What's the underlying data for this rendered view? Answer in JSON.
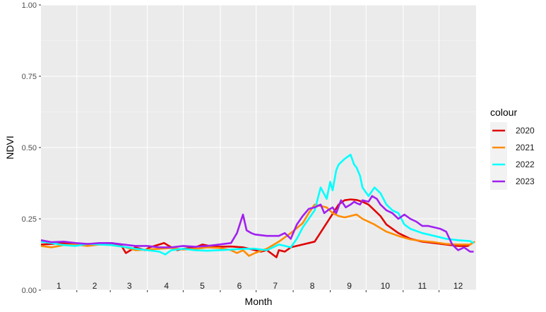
{
  "chart_data": {
    "type": "line",
    "xlabel": "Month",
    "ylabel": "NDVI",
    "xlim": [
      1,
      365
    ],
    "ylim": [
      0,
      1
    ],
    "y_ticks": [
      "0.00",
      "0.25",
      "0.50",
      "0.75",
      "1.00"
    ],
    "y_tick_values": [
      0,
      0.25,
      0.5,
      0.75,
      1.0
    ],
    "month_labels": [
      "1",
      "2",
      "3",
      "4",
      "5",
      "6",
      "7",
      "8",
      "9",
      "10",
      "11",
      "12"
    ],
    "month_centers": [
      16,
      46,
      75,
      106,
      136,
      167,
      197,
      228,
      259,
      289,
      320,
      350
    ],
    "month_boundaries": [
      31,
      59,
      90,
      120,
      151,
      181,
      212,
      243,
      273,
      304,
      334
    ],
    "grid": true,
    "background": "#EBEBEB",
    "legend": {
      "title": "colour",
      "position": "right"
    },
    "series": [
      {
        "name": "2020",
        "color": "#E00000",
        "x": [
          1,
          10,
          20,
          30,
          40,
          50,
          60,
          68,
          72,
          80,
          88,
          92,
          96,
          100,
          104,
          108,
          115,
          120,
          130,
          136,
          142,
          150,
          160,
          170,
          180,
          185,
          190,
          198,
          200,
          205,
          210,
          220,
          230,
          240,
          250,
          255,
          260,
          265,
          270,
          275,
          280,
          285,
          290,
          300,
          310,
          320,
          330,
          340,
          350,
          358,
          362
        ],
        "y": [
          0.16,
          0.162,
          0.165,
          0.163,
          0.16,
          0.162,
          0.165,
          0.158,
          0.13,
          0.15,
          0.14,
          0.15,
          0.155,
          0.16,
          0.165,
          0.155,
          0.14,
          0.145,
          0.15,
          0.16,
          0.155,
          0.152,
          0.153,
          0.15,
          0.14,
          0.135,
          0.14,
          0.115,
          0.14,
          0.135,
          0.15,
          0.16,
          0.17,
          0.235,
          0.3,
          0.315,
          0.318,
          0.316,
          0.31,
          0.3,
          0.28,
          0.26,
          0.23,
          0.2,
          0.18,
          0.17,
          0.165,
          0.16,
          0.155,
          0.155,
          0.165
        ]
      },
      {
        "name": "2021",
        "color": "#FF8C00",
        "x": [
          1,
          10,
          20,
          30,
          40,
          50,
          60,
          70,
          80,
          90,
          100,
          110,
          120,
          130,
          140,
          150,
          160,
          165,
          170,
          175,
          180,
          190,
          200,
          210,
          220,
          225,
          230,
          235,
          240,
          245,
          250,
          255,
          260,
          265,
          270,
          280,
          290,
          300,
          310,
          320,
          330,
          340,
          350,
          360,
          364
        ],
        "y": [
          0.155,
          0.15,
          0.158,
          0.16,
          0.155,
          0.16,
          0.158,
          0.152,
          0.14,
          0.142,
          0.145,
          0.148,
          0.142,
          0.145,
          0.15,
          0.148,
          0.14,
          0.13,
          0.14,
          0.12,
          0.13,
          0.145,
          0.17,
          0.2,
          0.235,
          0.27,
          0.3,
          0.295,
          0.29,
          0.27,
          0.26,
          0.255,
          0.26,
          0.265,
          0.25,
          0.23,
          0.205,
          0.19,
          0.178,
          0.172,
          0.168,
          0.162,
          0.16,
          0.16,
          0.17
        ]
      },
      {
        "name": "2022",
        "color": "#00FFFF",
        "x": [
          1,
          10,
          20,
          30,
          40,
          50,
          60,
          70,
          80,
          90,
          100,
          105,
          110,
          120,
          130,
          140,
          150,
          160,
          170,
          180,
          190,
          200,
          210,
          215,
          220,
          225,
          230,
          235,
          240,
          243,
          245,
          248,
          250,
          255,
          260,
          263,
          265,
          268,
          270,
          275,
          280,
          285,
          290,
          295,
          300,
          305,
          310,
          320,
          330,
          340,
          350,
          360,
          363
        ],
        "y": [
          0.17,
          0.165,
          0.158,
          0.155,
          0.162,
          0.16,
          0.158,
          0.152,
          0.145,
          0.14,
          0.135,
          0.125,
          0.14,
          0.145,
          0.14,
          0.138,
          0.14,
          0.142,
          0.145,
          0.145,
          0.14,
          0.16,
          0.15,
          0.18,
          0.22,
          0.25,
          0.28,
          0.36,
          0.32,
          0.38,
          0.35,
          0.42,
          0.44,
          0.46,
          0.475,
          0.44,
          0.43,
          0.4,
          0.36,
          0.33,
          0.36,
          0.34,
          0.3,
          0.28,
          0.27,
          0.23,
          0.215,
          0.2,
          0.19,
          0.18,
          0.175,
          0.172,
          0.165
        ]
      },
      {
        "name": "2023",
        "color": "#A020F0",
        "x": [
          1,
          10,
          20,
          30,
          40,
          50,
          60,
          70,
          80,
          90,
          100,
          110,
          120,
          130,
          140,
          150,
          160,
          165,
          170,
          173,
          177,
          180,
          190,
          200,
          205,
          210,
          215,
          220,
          225,
          230,
          235,
          238,
          241,
          245,
          248,
          252,
          256,
          260,
          263,
          265,
          268,
          270,
          275,
          278,
          282,
          285,
          290,
          295,
          300,
          305,
          310,
          315,
          320,
          325,
          330,
          335,
          340,
          345,
          350,
          355,
          360,
          363
        ],
        "y": [
          0.175,
          0.168,
          0.17,
          0.165,
          0.162,
          0.165,
          0.165,
          0.16,
          0.155,
          0.155,
          0.15,
          0.15,
          0.155,
          0.152,
          0.155,
          0.16,
          0.165,
          0.2,
          0.265,
          0.21,
          0.2,
          0.195,
          0.19,
          0.19,
          0.2,
          0.18,
          0.23,
          0.26,
          0.285,
          0.29,
          0.3,
          0.27,
          0.28,
          0.29,
          0.27,
          0.315,
          0.29,
          0.3,
          0.31,
          0.305,
          0.3,
          0.315,
          0.31,
          0.33,
          0.32,
          0.3,
          0.28,
          0.27,
          0.25,
          0.265,
          0.25,
          0.24,
          0.225,
          0.225,
          0.22,
          0.215,
          0.205,
          0.16,
          0.14,
          0.15,
          0.135,
          0.135
        ]
      }
    ]
  }
}
